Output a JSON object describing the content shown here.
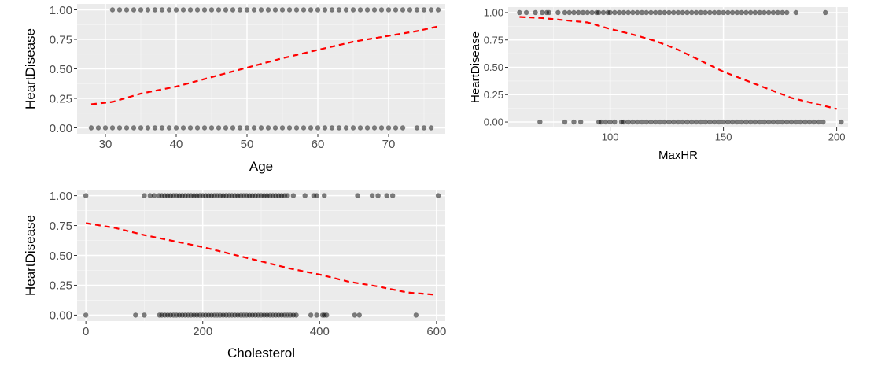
{
  "chart_data": [
    {
      "type": "scatter",
      "xlabel": "Age",
      "ylabel": "HeartDisease",
      "xlim": [
        26,
        78
      ],
      "ylim": [
        -0.05,
        1.05
      ],
      "x_ticks": [
        30,
        40,
        50,
        60,
        70
      ],
      "x_tick_labels": [
        "30",
        "40",
        "50",
        "60",
        "70"
      ],
      "y_ticks": [
        0,
        0.25,
        0.5,
        0.75,
        1
      ],
      "y_tick_labels": [
        "0.00",
        "0.25",
        "0.50",
        "0.75",
        "1.00"
      ],
      "grid": true,
      "point_color": "#000000",
      "trend_color": "#ff0000",
      "points_y1": [
        31,
        32,
        33,
        34,
        35,
        36,
        37,
        38,
        39,
        40,
        41,
        42,
        43,
        44,
        45,
        46,
        47,
        48,
        49,
        50,
        51,
        52,
        53,
        54,
        55,
        56,
        57,
        58,
        59,
        60,
        61,
        62,
        63,
        64,
        65,
        66,
        67,
        68,
        69,
        70,
        71,
        72,
        73,
        74,
        75,
        76,
        77
      ],
      "points_y0": [
        28,
        29,
        30,
        31,
        32,
        33,
        34,
        35,
        36,
        37,
        38,
        39,
        40,
        41,
        42,
        43,
        44,
        45,
        46,
        47,
        48,
        49,
        50,
        51,
        52,
        53,
        54,
        55,
        56,
        57,
        58,
        59,
        60,
        61,
        62,
        63,
        64,
        65,
        66,
        67,
        68,
        69,
        70,
        71,
        72,
        74,
        75,
        76
      ],
      "trend": {
        "x": [
          28,
          31,
          35,
          40,
          45,
          50,
          55,
          60,
          65,
          70,
          74,
          77
        ],
        "y": [
          0.2,
          0.22,
          0.29,
          0.35,
          0.43,
          0.51,
          0.59,
          0.66,
          0.73,
          0.78,
          0.82,
          0.86
        ]
      }
    },
    {
      "type": "scatter",
      "xlabel": "MaxHR",
      "ylabel": "HeartDisease",
      "xlim": [
        55,
        205
      ],
      "ylim": [
        -0.05,
        1.05
      ],
      "x_ticks": [
        100,
        150,
        200
      ],
      "x_tick_labels": [
        "100",
        "150",
        "200"
      ],
      "y_ticks": [
        0,
        0.25,
        0.5,
        0.75,
        1
      ],
      "y_tick_labels": [
        "0.00",
        "0.25",
        "0.50",
        "0.75",
        "1.00"
      ],
      "grid": true,
      "point_color": "#000000",
      "trend_color": "#ff0000",
      "points_y1": [
        60,
        63,
        67,
        70,
        72,
        73,
        77,
        80,
        82,
        84,
        86,
        88,
        90,
        92,
        94,
        95,
        97,
        99,
        100,
        102,
        104,
        106,
        108,
        110,
        112,
        114,
        116,
        118,
        120,
        122,
        124,
        126,
        128,
        130,
        132,
        134,
        136,
        138,
        140,
        142,
        144,
        146,
        148,
        150,
        152,
        154,
        156,
        158,
        160,
        162,
        164,
        166,
        168,
        170,
        172,
        174,
        176,
        178,
        182,
        195
      ],
      "points_y0": [
        69,
        80,
        84,
        87,
        95,
        96,
        98,
        100,
        102,
        105,
        106,
        108,
        110,
        112,
        114,
        116,
        118,
        120,
        122,
        124,
        126,
        128,
        130,
        132,
        134,
        136,
        138,
        140,
        142,
        144,
        146,
        148,
        150,
        152,
        154,
        156,
        158,
        160,
        162,
        164,
        166,
        168,
        170,
        172,
        174,
        176,
        178,
        180,
        182,
        184,
        186,
        188,
        190,
        192,
        194,
        202
      ],
      "trend": {
        "x": [
          60,
          70,
          80,
          90,
          100,
          110,
          120,
          130,
          140,
          150,
          160,
          170,
          180,
          190,
          200
        ],
        "y": [
          0.96,
          0.95,
          0.93,
          0.91,
          0.85,
          0.8,
          0.74,
          0.66,
          0.56,
          0.46,
          0.38,
          0.3,
          0.22,
          0.17,
          0.12
        ]
      }
    },
    {
      "type": "scatter",
      "xlabel": "Cholesterol",
      "ylabel": "HeartDisease",
      "xlim": [
        -15,
        615
      ],
      "ylim": [
        -0.05,
        1.05
      ],
      "x_ticks": [
        0,
        200,
        400,
        600
      ],
      "x_tick_labels": [
        "0",
        "200",
        "400",
        "600"
      ],
      "y_ticks": [
        0,
        0.25,
        0.5,
        0.75,
        1
      ],
      "y_tick_labels": [
        "0.00",
        "0.25",
        "0.50",
        "0.75",
        "1.00"
      ],
      "grid": true,
      "point_color": "#000000",
      "trend_color": "#ff0000",
      "points_y1": [
        0,
        100,
        110,
        117,
        125,
        130,
        135,
        140,
        145,
        150,
        155,
        160,
        165,
        170,
        175,
        180,
        185,
        190,
        195,
        200,
        205,
        210,
        215,
        220,
        225,
        230,
        235,
        240,
        245,
        250,
        255,
        260,
        265,
        270,
        275,
        280,
        285,
        290,
        295,
        300,
        305,
        310,
        315,
        320,
        325,
        330,
        335,
        340,
        345,
        355,
        375,
        390,
        395,
        408,
        465,
        490,
        500,
        515,
        525,
        603
      ],
      "points_y0": [
        0,
        85,
        100,
        126,
        130,
        135,
        140,
        145,
        150,
        155,
        160,
        165,
        170,
        175,
        180,
        185,
        190,
        195,
        200,
        205,
        210,
        215,
        220,
        225,
        230,
        235,
        240,
        245,
        250,
        255,
        260,
        265,
        270,
        275,
        280,
        285,
        290,
        295,
        300,
        305,
        310,
        315,
        320,
        325,
        330,
        335,
        340,
        345,
        350,
        355,
        360,
        385,
        395,
        405,
        408,
        412,
        460,
        468,
        565
      ],
      "trend": {
        "x": [
          0,
          50,
          100,
          150,
          200,
          250,
          300,
          350,
          400,
          450,
          500,
          550,
          600
        ],
        "y": [
          0.77,
          0.73,
          0.67,
          0.62,
          0.57,
          0.51,
          0.45,
          0.39,
          0.34,
          0.28,
          0.24,
          0.19,
          0.17
        ]
      }
    }
  ]
}
